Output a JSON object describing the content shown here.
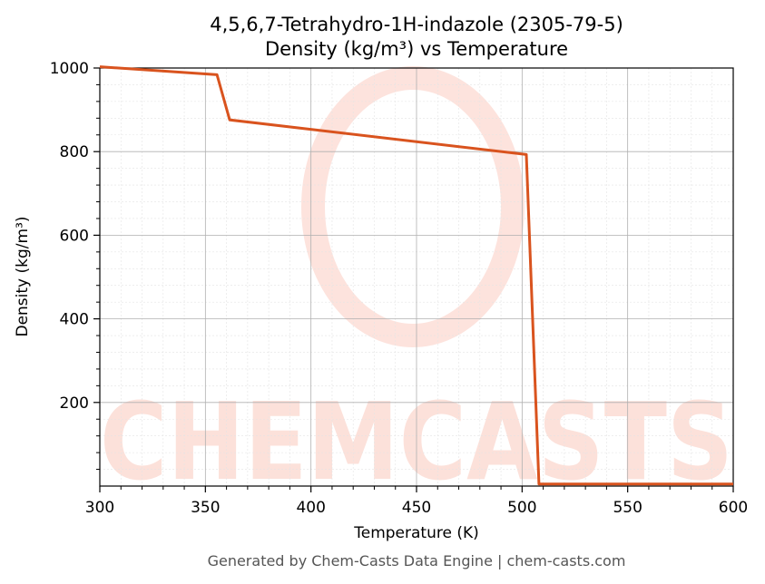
{
  "chart_data": {
    "type": "line",
    "title": "4,5,6,7-Tetrahydro-1H-indazole (2305-79-5)",
    "subtitle": "Density (kg/m³) vs Temperature",
    "xlabel": "Temperature (K)",
    "ylabel": "Density (kg/m³)",
    "xlim": [
      300,
      600
    ],
    "ylim": [
      0,
      1000
    ],
    "x_ticks": [
      300,
      350,
      400,
      450,
      500,
      550,
      600
    ],
    "y_ticks": [
      200,
      400,
      600,
      800,
      1000
    ],
    "grid": true,
    "series": [
      {
        "color": "#d9531e",
        "x": [
          300,
          355.5,
          361.5,
          502,
          508,
          600
        ],
        "y": [
          1003,
          984,
          876,
          793,
          5,
          5
        ]
      }
    ]
  },
  "watermark": "CHEMCASTS",
  "footer": "Generated by Chem-Casts Data Engine | chem-casts.com"
}
